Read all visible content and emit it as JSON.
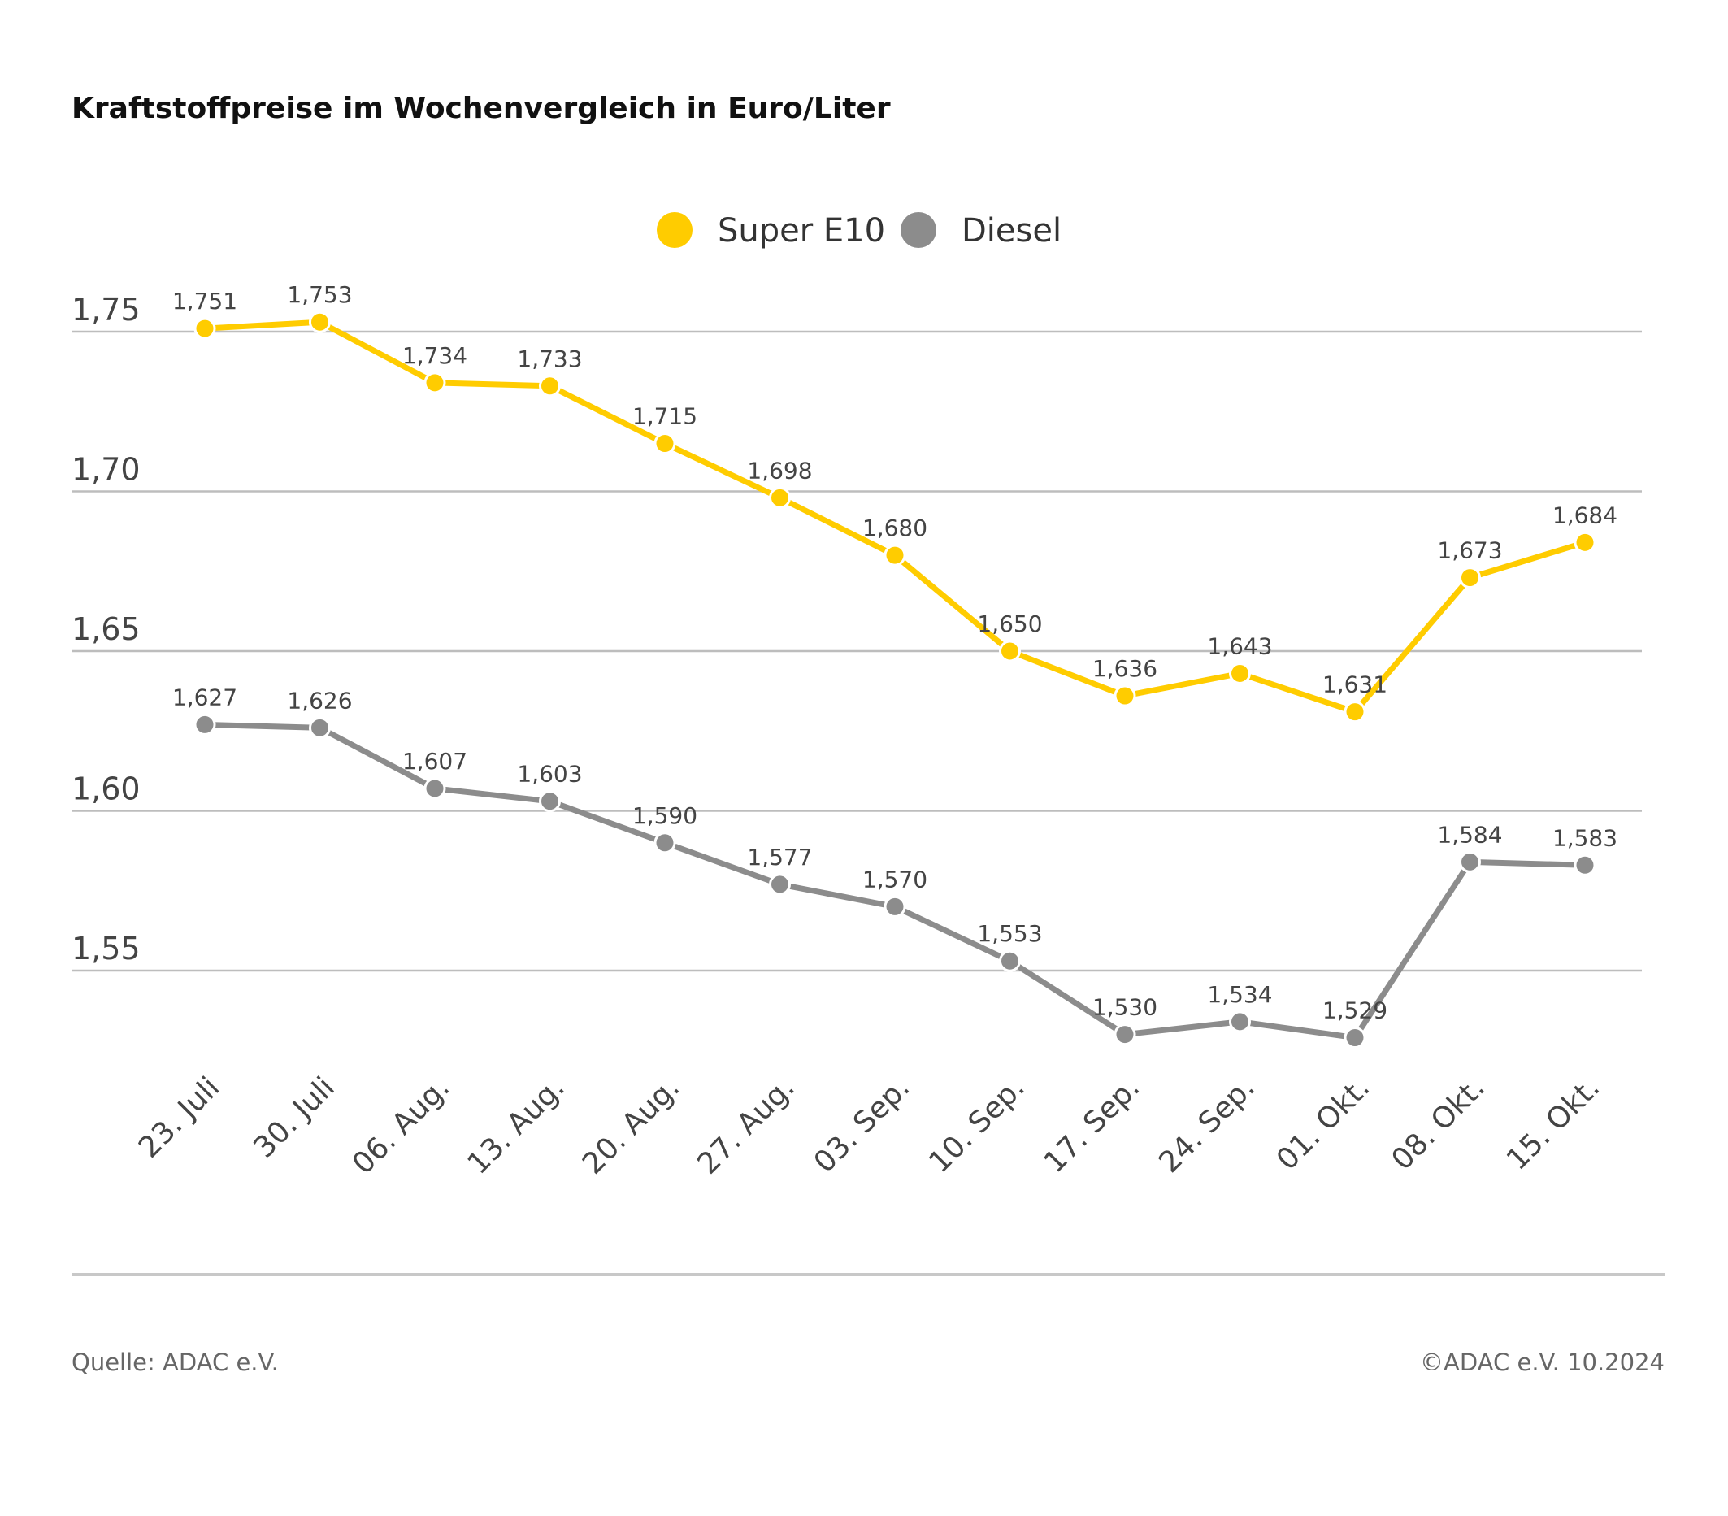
{
  "title": "Kraftstoffpreise im Wochenvergleich in Euro/Liter",
  "legend": {
    "placement": "top-center",
    "items": [
      {
        "label": "Super E10",
        "color": "#FFCC00"
      },
      {
        "label": "Diesel",
        "color": "#8C8C8C"
      }
    ]
  },
  "footer": {
    "source": "Quelle: ADAC e.V.",
    "copyright": "©ADAC e.V. 10.2024"
  },
  "chart_data": {
    "type": "line",
    "title": "Kraftstoffpreise im Wochenvergleich in Euro/Liter",
    "categories": [
      "23. Juli",
      "30. Juli",
      "06. Aug.",
      "13. Aug.",
      "20. Aug.",
      "27. Aug.",
      "03. Sep.",
      "10. Sep.",
      "17. Sep.",
      "24. Sep.",
      "01. Okt.",
      "08. Okt.",
      "15. Okt."
    ],
    "series": [
      {
        "name": "Super E10",
        "color": "#FFCC00",
        "values": [
          1.751,
          1.753,
          1.734,
          1.733,
          1.715,
          1.698,
          1.68,
          1.65,
          1.636,
          1.643,
          1.631,
          1.673,
          1.684
        ],
        "labels": [
          "1,751",
          "1,753",
          "1,734",
          "1,733",
          "1,715",
          "1,698",
          "1,680",
          "1,650",
          "1,636",
          "1,643",
          "1,631",
          "1,673",
          "1,684"
        ]
      },
      {
        "name": "Diesel",
        "color": "#8C8C8C",
        "values": [
          1.627,
          1.626,
          1.607,
          1.603,
          1.59,
          1.577,
          1.57,
          1.553,
          1.53,
          1.534,
          1.529,
          1.584,
          1.583
        ],
        "labels": [
          "1,627",
          "1,626",
          "1,607",
          "1,603",
          "1,590",
          "1,577",
          "1,570",
          "1,553",
          "1,530",
          "1,534",
          "1,529",
          "1,584",
          "1,583"
        ]
      }
    ],
    "yticks": [
      1.75,
      1.7,
      1.65,
      1.6,
      1.55
    ],
    "ytick_labels": [
      "1,75",
      "1,70",
      "1,65",
      "1,60",
      "1,55"
    ],
    "grid": true,
    "xlabel": "",
    "ylabel": ""
  }
}
